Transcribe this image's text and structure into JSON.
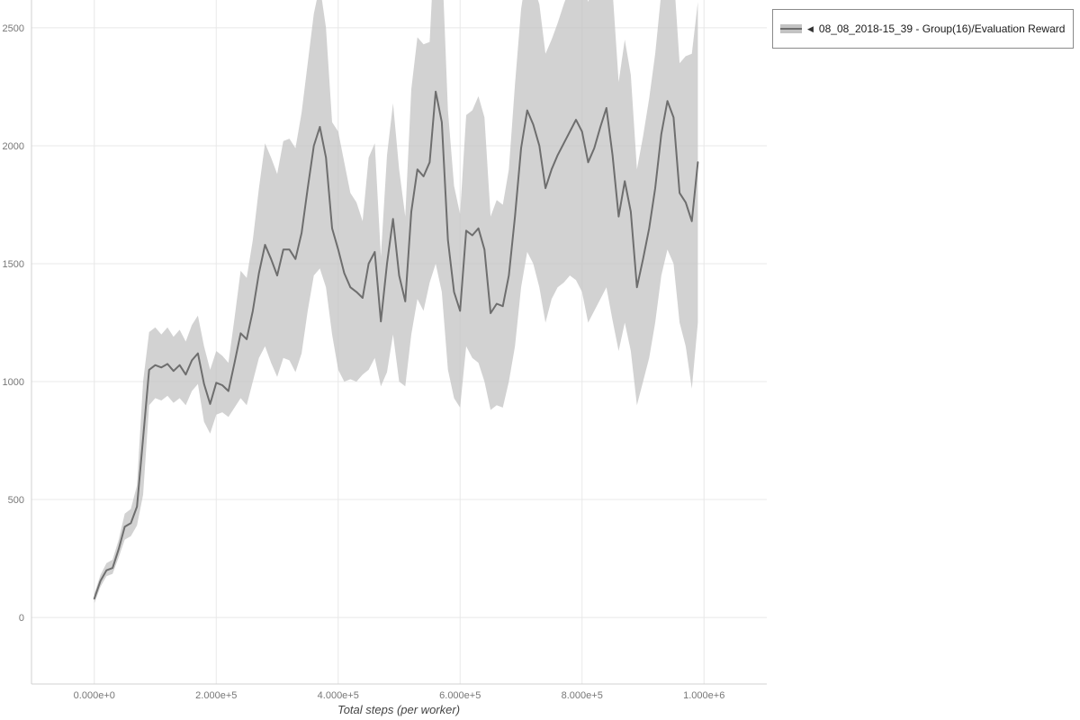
{
  "legend": {
    "marker": "◀",
    "label": "08_08_2018-15_39 - Group(16)/Evaluation Reward"
  },
  "chart_data": {
    "type": "line",
    "title": "",
    "xlabel": "Total steps (per worker)",
    "ylabel": "",
    "grid": true,
    "legend_position": "top-right",
    "xlim": [
      -103000,
      1103000
    ],
    "ylim": [
      -282,
      2618
    ],
    "x_ticks": {
      "values": [
        0,
        200000,
        400000,
        600000,
        800000,
        1000000
      ],
      "labels": [
        "0.000e+0",
        "2.000e+5",
        "4.000e+5",
        "6.000e+5",
        "8.000e+5",
        "1.000e+6"
      ]
    },
    "y_ticks": {
      "values": [
        0,
        500,
        1000,
        1500,
        2000,
        2500
      ],
      "labels": [
        "0",
        "500",
        "1000",
        "1500",
        "2000",
        "2500"
      ]
    },
    "colors": {
      "line": "#6e6e6e",
      "band": "#c3c3c3",
      "band_opacity": 0.75,
      "grid": "#e8e8e8",
      "axis": "#d0d0d0",
      "tick_text": "#777777",
      "axis_title": "#444444"
    },
    "series": [
      {
        "name": "08_08_2018-15_39 - Group(16)/Evaluation Reward",
        "x_start": 0,
        "x_step": 10000,
        "mean": [
          80,
          155,
          200,
          210,
          290,
          385,
          400,
          470,
          760,
          1050,
          1070,
          1060,
          1075,
          1045,
          1070,
          1030,
          1090,
          1120,
          990,
          905,
          995,
          985,
          960,
          1080,
          1205,
          1180,
          1300,
          1460,
          1580,
          1520,
          1450,
          1560,
          1560,
          1520,
          1630,
          1820,
          2000,
          2080,
          1950,
          1650,
          1560,
          1460,
          1400,
          1380,
          1355,
          1500,
          1550,
          1255,
          1500,
          1690,
          1450,
          1340,
          1720,
          1900,
          1870,
          1930,
          2230,
          2100,
          1600,
          1380,
          1300,
          1640,
          1620,
          1650,
          1560,
          1290,
          1330,
          1320,
          1450,
          1700,
          1990,
          2150,
          2090,
          2000,
          1820,
          1900,
          1960,
          2010,
          2060,
          2110,
          2060,
          1930,
          1990,
          2080,
          2160,
          1960,
          1700,
          1850,
          1720,
          1400,
          1520,
          1650,
          1820,
          2050,
          2190,
          2120,
          1800,
          1760,
          1680,
          1930
        ],
        "band_lower": [
          60,
          130,
          175,
          185,
          255,
          330,
          345,
          390,
          520,
          900,
          930,
          920,
          940,
          910,
          930,
          900,
          960,
          990,
          830,
          780,
          860,
          870,
          850,
          890,
          930,
          900,
          1000,
          1100,
          1150,
          1080,
          1020,
          1100,
          1090,
          1040,
          1120,
          1300,
          1450,
          1480,
          1400,
          1200,
          1050,
          1000,
          1010,
          1000,
          1030,
          1050,
          1100,
          980,
          1040,
          1200,
          1000,
          980,
          1200,
          1350,
          1300,
          1420,
          1500,
          1380,
          1050,
          930,
          890,
          1150,
          1100,
          1080,
          1000,
          880,
          900,
          890,
          1000,
          1150,
          1400,
          1550,
          1500,
          1400,
          1250,
          1350,
          1400,
          1420,
          1450,
          1430,
          1380,
          1250,
          1300,
          1350,
          1400,
          1260,
          1130,
          1250,
          1130,
          900,
          1000,
          1100,
          1250,
          1450,
          1560,
          1500,
          1250,
          1150,
          970,
          1250
        ],
        "band_upper": [
          100,
          180,
          230,
          245,
          330,
          440,
          460,
          560,
          1000,
          1210,
          1230,
          1200,
          1230,
          1190,
          1220,
          1170,
          1240,
          1280,
          1150,
          1050,
          1130,
          1110,
          1080,
          1270,
          1470,
          1440,
          1600,
          1820,
          2010,
          1950,
          1880,
          2020,
          2030,
          1990,
          2140,
          2350,
          2560,
          2680,
          2500,
          2100,
          2060,
          1930,
          1800,
          1760,
          1680,
          1950,
          2010,
          1530,
          1960,
          2180,
          1900,
          1700,
          2240,
          2460,
          2430,
          2440,
          2950,
          2810,
          2150,
          1830,
          1710,
          2130,
          2150,
          2210,
          2120,
          1700,
          1770,
          1750,
          1900,
          2260,
          2580,
          2750,
          2680,
          2600,
          2390,
          2450,
          2520,
          2600,
          2670,
          2780,
          2730,
          2610,
          2680,
          2800,
          2910,
          2660,
          2270,
          2450,
          2300,
          1900,
          2040,
          2200,
          2390,
          2650,
          2820,
          2740,
          2350,
          2380,
          2390,
          2610
        ]
      }
    ]
  }
}
